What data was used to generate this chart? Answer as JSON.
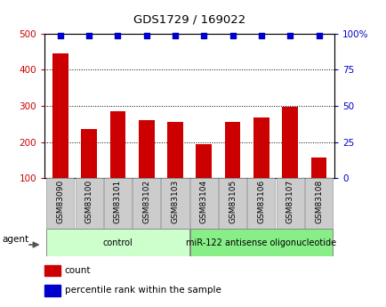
{
  "title": "GDS1729 / 169022",
  "samples": [
    "GSM83090",
    "GSM83100",
    "GSM83101",
    "GSM83102",
    "GSM83103",
    "GSM83104",
    "GSM83105",
    "GSM83106",
    "GSM83107",
    "GSM83108"
  ],
  "counts": [
    445,
    237,
    285,
    260,
    255,
    193,
    255,
    268,
    298,
    158
  ],
  "percentile_ranks": [
    99,
    99,
    99,
    99,
    99,
    99,
    99,
    99,
    99,
    99
  ],
  "ylim_left": [
    100,
    500
  ],
  "ylim_right": [
    0,
    100
  ],
  "yticks_left": [
    100,
    200,
    300,
    400,
    500
  ],
  "yticks_right": [
    0,
    25,
    50,
    75,
    100
  ],
  "bar_color": "#cc0000",
  "scatter_color": "#0000cc",
  "tick_color_left": "#cc0000",
  "tick_color_right": "#0000cc",
  "groups": [
    {
      "label": "control",
      "indices": [
        0,
        1,
        2,
        3,
        4
      ],
      "color": "#ccffcc"
    },
    {
      "label": "miR-122 antisense oligonucleotide",
      "indices": [
        5,
        6,
        7,
        8,
        9
      ],
      "color": "#88ee88"
    }
  ],
  "legend_count_label": "count",
  "legend_pct_label": "percentile rank within the sample",
  "agent_label": "agent"
}
